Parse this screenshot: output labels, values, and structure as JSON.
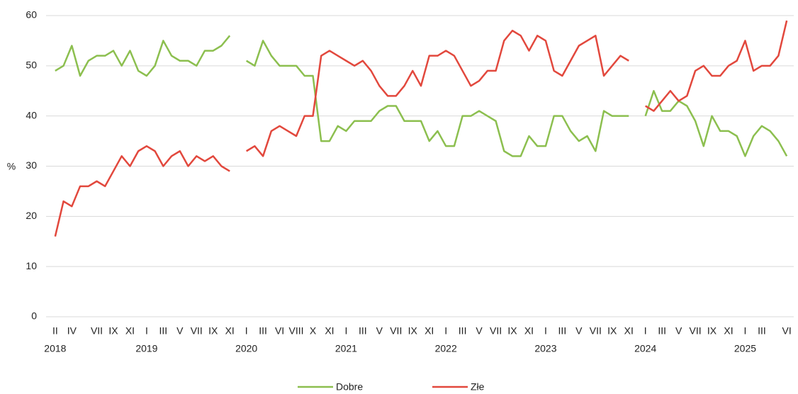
{
  "chart_data": {
    "type": "line",
    "y_label": "%",
    "categories": [
      "II",
      null,
      "IV",
      null,
      null,
      "VII",
      null,
      "IX",
      null,
      "XI",
      null,
      "I",
      null,
      "III",
      null,
      "V",
      null,
      "VII",
      null,
      "IX",
      null,
      "XI",
      null,
      "I",
      null,
      "III",
      null,
      "VI",
      null,
      "VIII",
      null,
      "X",
      null,
      "XI",
      null,
      "I",
      null,
      "III",
      null,
      "V",
      null,
      "VII",
      null,
      "IX",
      null,
      "XI",
      null,
      "I",
      null,
      "III",
      null,
      "V",
      null,
      "VII",
      null,
      "IX",
      null,
      "XI",
      null,
      "I",
      null,
      "III",
      null,
      "V",
      null,
      "VII",
      null,
      "IX",
      null,
      "XI",
      null,
      "I",
      null,
      "III",
      null,
      "V",
      null,
      "VII",
      null,
      "IX",
      null,
      "XI",
      null,
      "I",
      null,
      "III",
      null,
      null,
      "VI"
    ],
    "year_labels": [
      "2018",
      null,
      null,
      null,
      null,
      null,
      null,
      null,
      null,
      null,
      null,
      "2019",
      null,
      null,
      null,
      null,
      null,
      null,
      null,
      null,
      null,
      null,
      null,
      "2020",
      null,
      null,
      null,
      null,
      null,
      null,
      null,
      null,
      null,
      null,
      null,
      "2021",
      null,
      null,
      null,
      null,
      null,
      null,
      null,
      null,
      null,
      null,
      null,
      "2022",
      null,
      null,
      null,
      null,
      null,
      null,
      null,
      null,
      null,
      null,
      null,
      "2023",
      null,
      null,
      null,
      null,
      null,
      null,
      null,
      null,
      null,
      null,
      null,
      "2024",
      null,
      null,
      null,
      null,
      null,
      null,
      null,
      null,
      null,
      null,
      null,
      "2025",
      null,
      null,
      null,
      null,
      null
    ],
    "series": [
      {
        "name": "Dobre",
        "color": "#8cbf4f",
        "values": [
          49,
          50,
          54,
          48,
          51,
          52,
          52,
          53,
          50,
          53,
          49,
          48,
          50,
          55,
          52,
          51,
          51,
          50,
          53,
          53,
          54,
          56,
          null,
          51,
          50,
          55,
          52,
          50,
          50,
          50,
          48,
          48,
          35,
          35,
          38,
          37,
          39,
          39,
          39,
          41,
          42,
          42,
          39,
          39,
          39,
          35,
          37,
          34,
          34,
          40,
          40,
          41,
          40,
          39,
          33,
          32,
          32,
          36,
          34,
          34,
          40,
          40,
          37,
          35,
          36,
          33,
          41,
          40,
          40,
          40,
          null,
          40,
          45,
          41,
          41,
          43,
          42,
          39,
          34,
          40,
          37,
          37,
          36,
          32,
          36,
          38,
          37,
          35,
          32
        ]
      },
      {
        "name": "Złe",
        "color": "#e2483d",
        "values": [
          16,
          23,
          22,
          26,
          26,
          27,
          26,
          29,
          32,
          30,
          33,
          34,
          33,
          30,
          32,
          33,
          30,
          32,
          31,
          32,
          30,
          29,
          null,
          33,
          34,
          32,
          37,
          38,
          37,
          36,
          40,
          40,
          52,
          53,
          52,
          51,
          50,
          51,
          49,
          46,
          44,
          44,
          46,
          49,
          46,
          52,
          52,
          53,
          52,
          49,
          46,
          47,
          49,
          49,
          55,
          57,
          56,
          53,
          56,
          55,
          49,
          48,
          51,
          54,
          55,
          56,
          48,
          50,
          52,
          51,
          null,
          42,
          41,
          43,
          45,
          43,
          44,
          49,
          50,
          48,
          48,
          50,
          51,
          55,
          49,
          50,
          50,
          52,
          59
        ]
      }
    ],
    "ylim": [
      0,
      60
    ],
    "yticks": [
      0,
      10,
      20,
      30,
      40,
      50,
      60
    ],
    "grid": true
  }
}
